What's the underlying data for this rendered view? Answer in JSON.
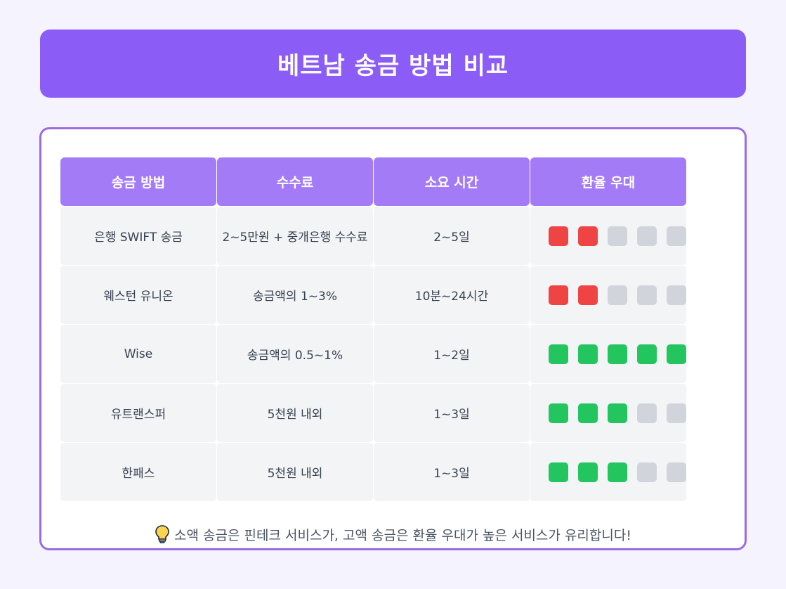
{
  "header": {
    "title": "베트남 송금 방법 비교"
  },
  "table": {
    "columns": [
      "송금 방법",
      "수수료",
      "소요 시간",
      "환율 우대"
    ],
    "rating_max": 5,
    "rows": [
      {
        "method": "은행 SWIFT 송금",
        "fee": "2~5만원 + 중개은행 수수료",
        "time": "2~5일",
        "rating": 2,
        "rating_tone": "bad"
      },
      {
        "method": "웨스턴 유니온",
        "fee": "송금액의 1~3%",
        "time": "10분~24시간",
        "rating": 2,
        "rating_tone": "bad"
      },
      {
        "method": "Wise",
        "fee": "송금액의 0.5~1%",
        "time": "1~2일",
        "rating": 5,
        "rating_tone": "good"
      },
      {
        "method": "유트랜스퍼",
        "fee": "5천원 내외",
        "time": "1~3일",
        "rating": 3,
        "rating_tone": "good"
      },
      {
        "method": "한패스",
        "fee": "5천원 내외",
        "time": "1~3일",
        "rating": 3,
        "rating_tone": "good"
      }
    ]
  },
  "tip": {
    "icon": "lightbulb-icon",
    "text": "소액 송금은 핀테크 서비스가, 고액 송금은 환율 우대가 높은 서비스가 유리합니다!"
  },
  "colors": {
    "accent": "#8b5cf6",
    "header_cell": "#a47bf7",
    "bad": "#ef4444",
    "good": "#22c55e",
    "empty": "#d1d5db"
  }
}
